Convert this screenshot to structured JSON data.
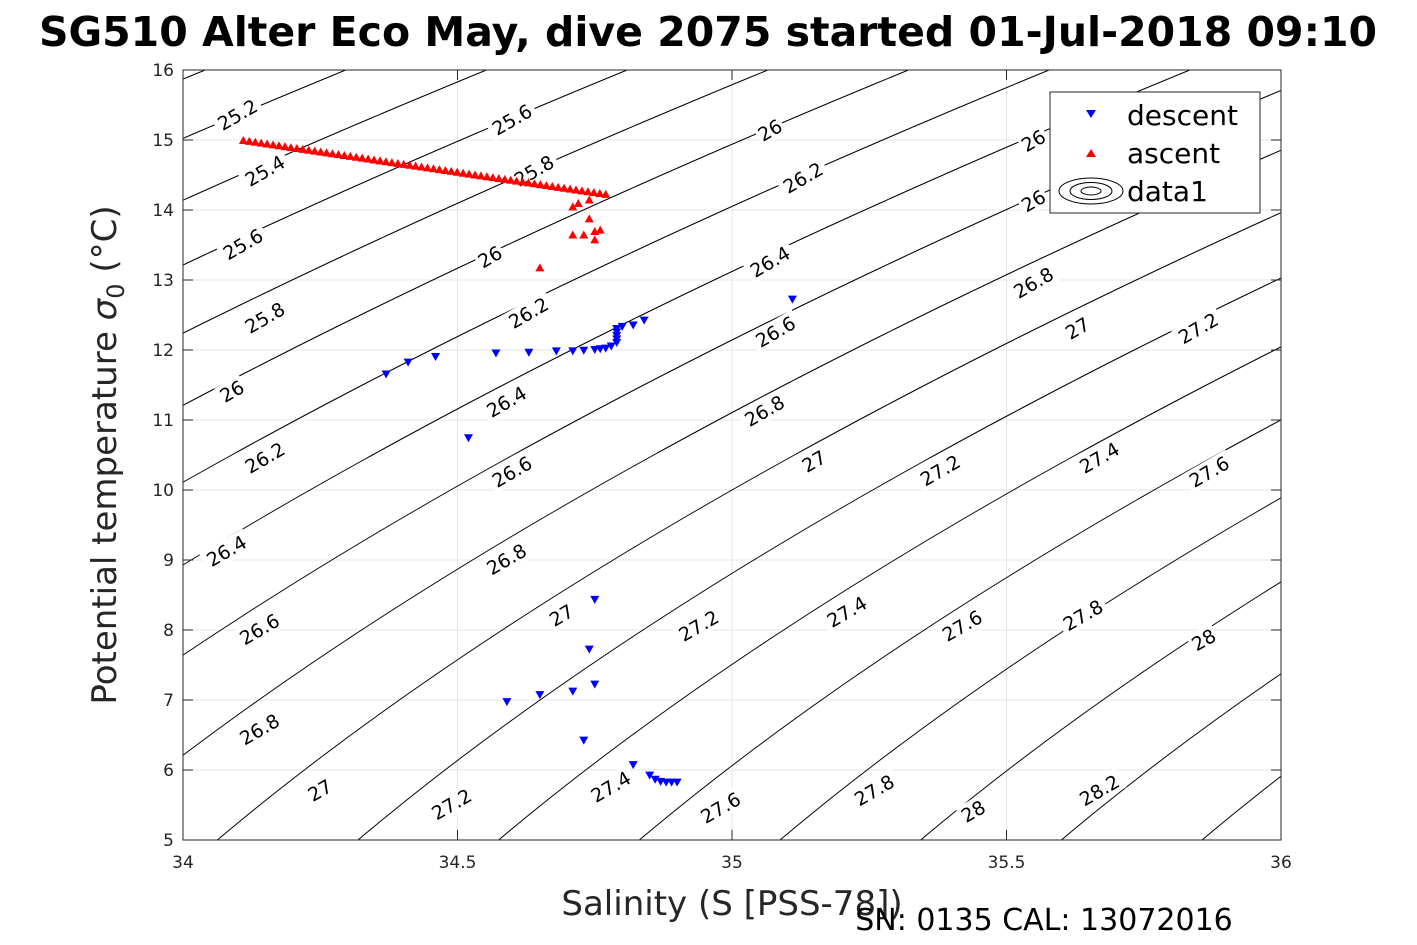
{
  "title": "SG510 Alter Eco May, dive 2075 started 01-Jul-2018 09:10",
  "footer": "SN: 0135  CAL: 13072016",
  "colors": {
    "descent": "#0000ff",
    "ascent": "#ff0000",
    "contour": "#000000",
    "grid": "#e6e6e6"
  },
  "chart_data": {
    "type": "scatter",
    "title": "SG510 Alter Eco May, dive 2075 started 01-Jul-2018 09:10",
    "xlabel": "Salinity (S [PSS-78])",
    "ylabel_text": "Potential temperature ",
    "ylabel_sym": "σ",
    "ylabel_sub": "0",
    "ylabel_unit": " (°C)",
    "xlim": [
      34,
      36
    ],
    "ylim": [
      5,
      16
    ],
    "xticks": [
      "34",
      "34.5",
      "35",
      "35.5",
      "36"
    ],
    "yticks": [
      "5",
      "6",
      "7",
      "8",
      "9",
      "10",
      "11",
      "12",
      "13",
      "14",
      "15",
      "16"
    ],
    "grid": true,
    "legend": {
      "position": "top-right",
      "entries": [
        {
          "label": "descent",
          "marker": "triangle-down"
        },
        {
          "label": "ascent",
          "marker": "triangle-up"
        },
        {
          "label": "data1",
          "marker": "contour"
        }
      ]
    },
    "series": [
      {
        "name": "descent",
        "marker": "triangle-down",
        "points": [
          [
            34.37,
            11.65
          ],
          [
            34.41,
            11.82
          ],
          [
            34.46,
            11.9
          ],
          [
            34.57,
            11.95
          ],
          [
            34.63,
            11.96
          ],
          [
            34.68,
            11.98
          ],
          [
            34.71,
            11.98
          ],
          [
            34.73,
            11.99
          ],
          [
            34.75,
            12.0
          ],
          [
            34.76,
            12.01
          ],
          [
            34.77,
            12.02
          ],
          [
            34.78,
            12.05
          ],
          [
            34.79,
            12.1
          ],
          [
            34.79,
            12.15
          ],
          [
            34.79,
            12.2
          ],
          [
            34.79,
            12.25
          ],
          [
            34.79,
            12.3
          ],
          [
            34.8,
            12.33
          ],
          [
            34.82,
            12.35
          ],
          [
            34.84,
            12.42
          ],
          [
            35.11,
            12.72
          ],
          [
            34.52,
            10.74
          ],
          [
            34.75,
            8.43
          ],
          [
            34.74,
            7.72
          ],
          [
            34.75,
            7.22
          ],
          [
            34.71,
            7.12
          ],
          [
            34.65,
            7.07
          ],
          [
            34.59,
            6.97
          ],
          [
            34.73,
            6.42
          ],
          [
            34.82,
            6.07
          ],
          [
            34.85,
            5.92
          ],
          [
            34.86,
            5.86
          ],
          [
            34.87,
            5.83
          ],
          [
            34.88,
            5.82
          ],
          [
            34.89,
            5.82
          ],
          [
            34.9,
            5.82
          ]
        ]
      },
      {
        "name": "ascent",
        "marker": "triangle-up",
        "line_start": [
          34.11,
          15.0
        ],
        "line_end": [
          34.77,
          14.23
        ],
        "line_count": 62,
        "points": [
          [
            34.74,
            14.15
          ],
          [
            34.72,
            14.1
          ],
          [
            34.71,
            14.05
          ],
          [
            34.74,
            13.88
          ],
          [
            34.71,
            13.65
          ],
          [
            34.73,
            13.65
          ],
          [
            34.75,
            13.7
          ],
          [
            34.76,
            13.72
          ],
          [
            34.75,
            13.58
          ],
          [
            34.65,
            13.18
          ]
        ]
      }
    ],
    "contours": {
      "name": "data1",
      "levels": [
        "25.2",
        "25.4",
        "25.6",
        "25.8",
        "26",
        "26.2",
        "26.4",
        "26.6",
        "26.8",
        "27",
        "27.2",
        "27.4",
        "27.6",
        "27.8",
        "28",
        "28.2"
      ],
      "labels": [
        {
          "text": "25.2",
          "s": 34.1,
          "t": 15.35
        },
        {
          "text": "25.4",
          "s": 34.15,
          "t": 14.55
        },
        {
          "text": "25.6",
          "s": 34.11,
          "t": 13.5
        },
        {
          "text": "25.8",
          "s": 34.15,
          "t": 12.45
        },
        {
          "text": "26",
          "s": 34.09,
          "t": 11.4
        },
        {
          "text": "26.2",
          "s": 34.15,
          "t": 10.45
        },
        {
          "text": "26.4",
          "s": 34.08,
          "t": 9.12
        },
        {
          "text": "26.6",
          "s": 34.14,
          "t": 8.0
        },
        {
          "text": "26.8",
          "s": 34.14,
          "t": 6.57
        },
        {
          "text": "27",
          "s": 34.25,
          "t": 5.7
        },
        {
          "text": "27.2",
          "s": 34.49,
          "t": 5.5
        },
        {
          "text": "27.4",
          "s": 34.78,
          "t": 5.75
        },
        {
          "text": "27.6",
          "s": 34.98,
          "t": 5.45
        },
        {
          "text": "27.8",
          "s": 35.26,
          "t": 5.7
        },
        {
          "text": "28",
          "s": 35.44,
          "t": 5.4
        },
        {
          "text": "28.2",
          "s": 35.67,
          "t": 5.7
        },
        {
          "text": "25.6",
          "s": 34.6,
          "t": 15.28
        },
        {
          "text": "25.8",
          "s": 34.64,
          "t": 14.55
        },
        {
          "text": "26",
          "s": 34.56,
          "t": 13.32
        },
        {
          "text": "26.2",
          "s": 34.63,
          "t": 12.52
        },
        {
          "text": "26.4",
          "s": 34.59,
          "t": 11.25
        },
        {
          "text": "26.6",
          "s": 34.6,
          "t": 10.25
        },
        {
          "text": "26.8",
          "s": 34.59,
          "t": 9.0
        },
        {
          "text": "27",
          "s": 34.69,
          "t": 8.2
        },
        {
          "text": "27.2",
          "s": 34.94,
          "t": 8.05
        },
        {
          "text": "27.4",
          "s": 35.21,
          "t": 8.25
        },
        {
          "text": "27.6",
          "s": 35.42,
          "t": 8.05
        },
        {
          "text": "27.8",
          "s": 35.64,
          "t": 8.2
        },
        {
          "text": "28",
          "s": 35.86,
          "t": 7.85
        },
        {
          "text": "26",
          "s": 35.07,
          "t": 15.13
        },
        {
          "text": "26.2",
          "s": 35.13,
          "t": 14.45
        },
        {
          "text": "26.4",
          "s": 35.07,
          "t": 13.25
        },
        {
          "text": "26.6",
          "s": 35.08,
          "t": 12.25
        },
        {
          "text": "26.8",
          "s": 35.06,
          "t": 11.12
        },
        {
          "text": "27",
          "s": 35.15,
          "t": 10.4
        },
        {
          "text": "27.2",
          "s": 35.38,
          "t": 10.27
        },
        {
          "text": "27.4",
          "s": 35.67,
          "t": 10.45
        },
        {
          "text": "27.6",
          "s": 35.87,
          "t": 10.25
        },
        {
          "text": "26",
          "s": 35.55,
          "t": 14.98
        },
        {
          "text": "26",
          "s": 35.55,
          "t": 14.12
        },
        {
          "text": "26.8",
          "s": 35.55,
          "t": 12.95
        },
        {
          "text": "27",
          "s": 35.63,
          "t": 12.3
        },
        {
          "text": "27.2",
          "s": 35.85,
          "t": 12.3
        }
      ]
    }
  }
}
